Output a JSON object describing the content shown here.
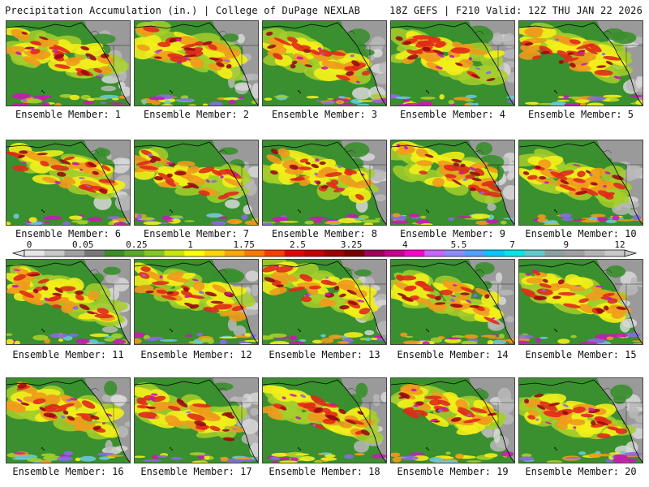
{
  "header": {
    "product": "Precipitation Accumulation (in.) | College of DuPage NEXLAB",
    "run_info": "18Z GEFS | F210 Valid: 12Z THU JAN 22 2026"
  },
  "members": [
    {
      "label": "Ensemble Member: 1"
    },
    {
      "label": "Ensemble Member: 2"
    },
    {
      "label": "Ensemble Member: 3"
    },
    {
      "label": "Ensemble Member: 4"
    },
    {
      "label": "Ensemble Member: 5"
    },
    {
      "label": "Ensemble Member: 6"
    },
    {
      "label": "Ensemble Member: 7"
    },
    {
      "label": "Ensemble Member: 8"
    },
    {
      "label": "Ensemble Member: 9"
    },
    {
      "label": "Ensemble Member: 10"
    },
    {
      "label": "Ensemble Member: 11"
    },
    {
      "label": "Ensemble Member: 12"
    },
    {
      "label": "Ensemble Member: 13"
    },
    {
      "label": "Ensemble Member: 14"
    },
    {
      "label": "Ensemble Member: 15"
    },
    {
      "label": "Ensemble Member: 16"
    },
    {
      "label": "Ensemble Member: 17"
    },
    {
      "label": "Ensemble Member: 18"
    },
    {
      "label": "Ensemble Member: 19"
    },
    {
      "label": "Ensemble Member: 20"
    }
  ],
  "legend": {
    "tick_labels": [
      "0",
      "0.05",
      "0.25",
      "1",
      "1.75",
      "2.5",
      "3.25",
      "4",
      "5.5",
      "7",
      "9",
      "12"
    ],
    "colors": [
      "#e6e6e6",
      "#c8c8c8",
      "#a0a0a0",
      "#787878",
      "#3c8c28",
      "#5aa82a",
      "#82c81e",
      "#c8e600",
      "#ffff00",
      "#ffd700",
      "#ffa800",
      "#ff7800",
      "#ff3c00",
      "#e60000",
      "#c80000",
      "#a00000",
      "#780000",
      "#a0005a",
      "#c8008c",
      "#ff00c8",
      "#c864ff",
      "#8c8cff",
      "#50a0ff",
      "#00c8ff",
      "#00e6e6",
      "#64c8c8",
      "#8ca0a0",
      "#a0a0a0",
      "#b4b4b4",
      "#c8c8c8"
    ]
  },
  "map_colors": {
    "ocean_base": "#3a8f2e",
    "land_dry": "#9a9a9a",
    "land_light": "#d8d8d8",
    "light_precip": "#a6cf2a",
    "moderate": "#f2ee1a",
    "heavy": "#f09a1c",
    "very_heavy": "#e02a1a",
    "extreme": "#9a0a10",
    "magenta": "#c81ab4",
    "violet": "#8a6ae0",
    "cyan": "#6ac8d8",
    "coast_line": "#000000"
  }
}
